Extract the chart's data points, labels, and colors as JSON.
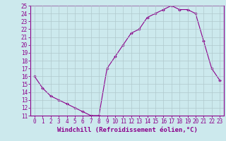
{
  "x": [
    0,
    1,
    2,
    3,
    4,
    5,
    6,
    7,
    8,
    9,
    10,
    11,
    12,
    13,
    14,
    15,
    16,
    17,
    18,
    19,
    20,
    21,
    22,
    23
  ],
  "y": [
    16,
    14.5,
    13.5,
    13,
    12.5,
    12,
    11.5,
    11,
    11,
    17,
    18.5,
    20,
    21.5,
    22,
    23.5,
    24,
    24.5,
    25,
    24.5,
    24.5,
    24,
    20.5,
    17,
    15.5
  ],
  "line_color": "#8B008B",
  "marker": "D",
  "marker_size": 1.8,
  "bg_color": "#cce9ed",
  "grid_color": "#b0c8cc",
  "xlabel": "Windchill (Refroidissement éolien,°C)",
  "ylim": [
    11,
    25
  ],
  "xlim": [
    -0.5,
    23.5
  ],
  "yticks": [
    11,
    12,
    13,
    14,
    15,
    16,
    17,
    18,
    19,
    20,
    21,
    22,
    23,
    24,
    25
  ],
  "xticks": [
    0,
    1,
    2,
    3,
    4,
    5,
    6,
    7,
    8,
    9,
    10,
    11,
    12,
    13,
    14,
    15,
    16,
    17,
    18,
    19,
    20,
    21,
    22,
    23
  ],
  "axis_color": "#8B008B",
  "tick_label_color": "#8B008B",
  "xlabel_color": "#8B008B",
  "xlabel_fontsize": 6.5,
  "xlabel_fontweight": "bold",
  "tick_fontsize": 5.5
}
